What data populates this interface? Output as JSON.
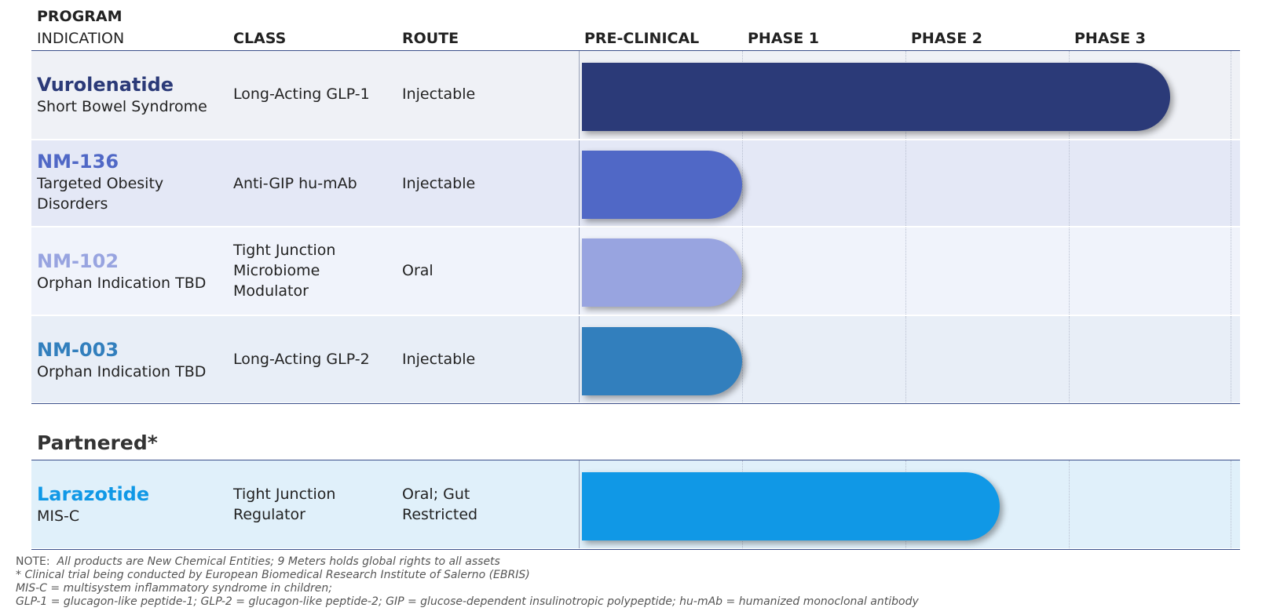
{
  "header": {
    "program": "PROGRAM",
    "indication": "INDICATION",
    "class": "CLASS",
    "route": "ROUTE",
    "phases": [
      "PRE-CLINICAL",
      "PHASE 1",
      "PHASE 2",
      "PHASE 3"
    ]
  },
  "pipeline": [
    {
      "program": "Vurolenatide",
      "indication": "Short Bowel Syndrome",
      "class": "Long-Acting GLP-1",
      "route": "Injectable",
      "progress_phases": 3.6,
      "color": "#2b3a78",
      "bg": "#eff1f6",
      "name_color": "#2b3a78"
    },
    {
      "program": "NM-136",
      "indication": "Targeted Obesity Disorders",
      "class": "Anti-GIP hu-mAb",
      "route": "Injectable",
      "progress_phases": 0.98,
      "color": "#5068c6",
      "bg": "#e4e8f6",
      "name_color": "#5068c6"
    },
    {
      "program": "NM-102",
      "indication": "Orphan Indication TBD",
      "class": "Tight Junction Microbiome Modulator",
      "route": "Oral",
      "progress_phases": 0.98,
      "color": "#98a4e0",
      "bg": "#f0f3fb",
      "name_color": "#98a4e0"
    },
    {
      "program": "NM-003",
      "indication": "Orphan Indication TBD",
      "class": "Long-Acting GLP-2",
      "route": "Injectable",
      "progress_phases": 0.98,
      "color": "#327fbd",
      "bg": "#e8eef7",
      "name_color": "#327fbd"
    }
  ],
  "partnered": {
    "section_label": "Partnered*",
    "rows": [
      {
        "program": "Larazotide",
        "indication": "MIS-C",
        "class": "Tight Junction Regulator",
        "route": "Oral; Gut Restricted",
        "progress_phases": 2.56,
        "color": "#1098e6",
        "bg": "#e0f0fa",
        "name_color": "#1098e6"
      }
    ]
  },
  "notes": {
    "line1_prefix": "NOTE:",
    "line1": "All products are New Chemical Entities; 9 Meters holds global rights to all assets",
    "line2": "* Clinical trial being conducted by European Biomedical Research Institute of Salerno (EBRIS)",
    "line3": "MIS-C = multisystem inflammatory syndrome in children;",
    "line4": "GLP-1 = glucagon-like peptide-1; GLP-2 = glucagon-like peptide-2; GIP = glucose-dependent insulinotropic polypeptide; hu-mAb = humanized monoclonal antibody"
  }
}
